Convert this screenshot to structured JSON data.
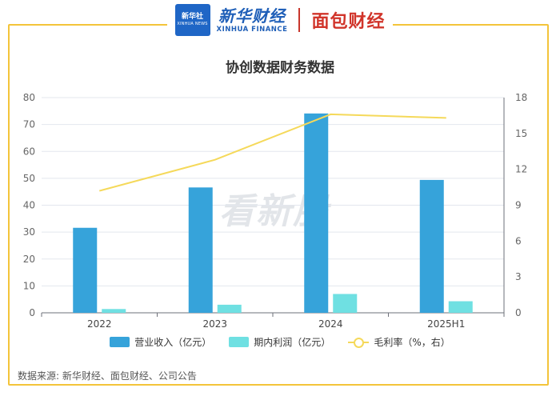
{
  "header": {
    "xinhua_logo_line1": "新华社",
    "xinhua_logo_line2": "XINHUA NEWS",
    "xinhua_brand_cn": "新华财经",
    "xinhua_brand_en": "XINHUA FINANCE",
    "partner_brand": "面包财经"
  },
  "watermark": "看新股",
  "source": "数据来源: 新华财经、面包财经、公司公告",
  "colors": {
    "revenue": "#36a3da",
    "profit": "#6fe0e2",
    "margin": "#f5d95a",
    "frame": "#f3c43a"
  },
  "chart_data": {
    "type": "bar",
    "title": "协创数据财务数据",
    "categories": [
      "2022",
      "2023",
      "2024",
      "2025H1"
    ],
    "y_left": {
      "range": [
        0,
        80
      ],
      "ticks": [
        0,
        10,
        20,
        30,
        40,
        50,
        60,
        70,
        80
      ]
    },
    "y_right": {
      "range": [
        0,
        18
      ],
      "ticks": [
        0,
        3,
        6,
        9,
        12,
        15,
        18
      ]
    },
    "grid": true,
    "legend_position": "bottom",
    "series": [
      {
        "name": "营业收入（亿元）",
        "type": "bar",
        "axis": "left",
        "values": [
          31.6,
          46.6,
          74.1,
          49.4
        ]
      },
      {
        "name": "期内利润（亿元）",
        "type": "bar",
        "axis": "left",
        "values": [
          1.4,
          3.0,
          7.0,
          4.3
        ]
      },
      {
        "name": "毛利率（%，右）",
        "type": "line",
        "axis": "right",
        "values": [
          10.2,
          12.8,
          16.6,
          16.3
        ]
      }
    ]
  }
}
